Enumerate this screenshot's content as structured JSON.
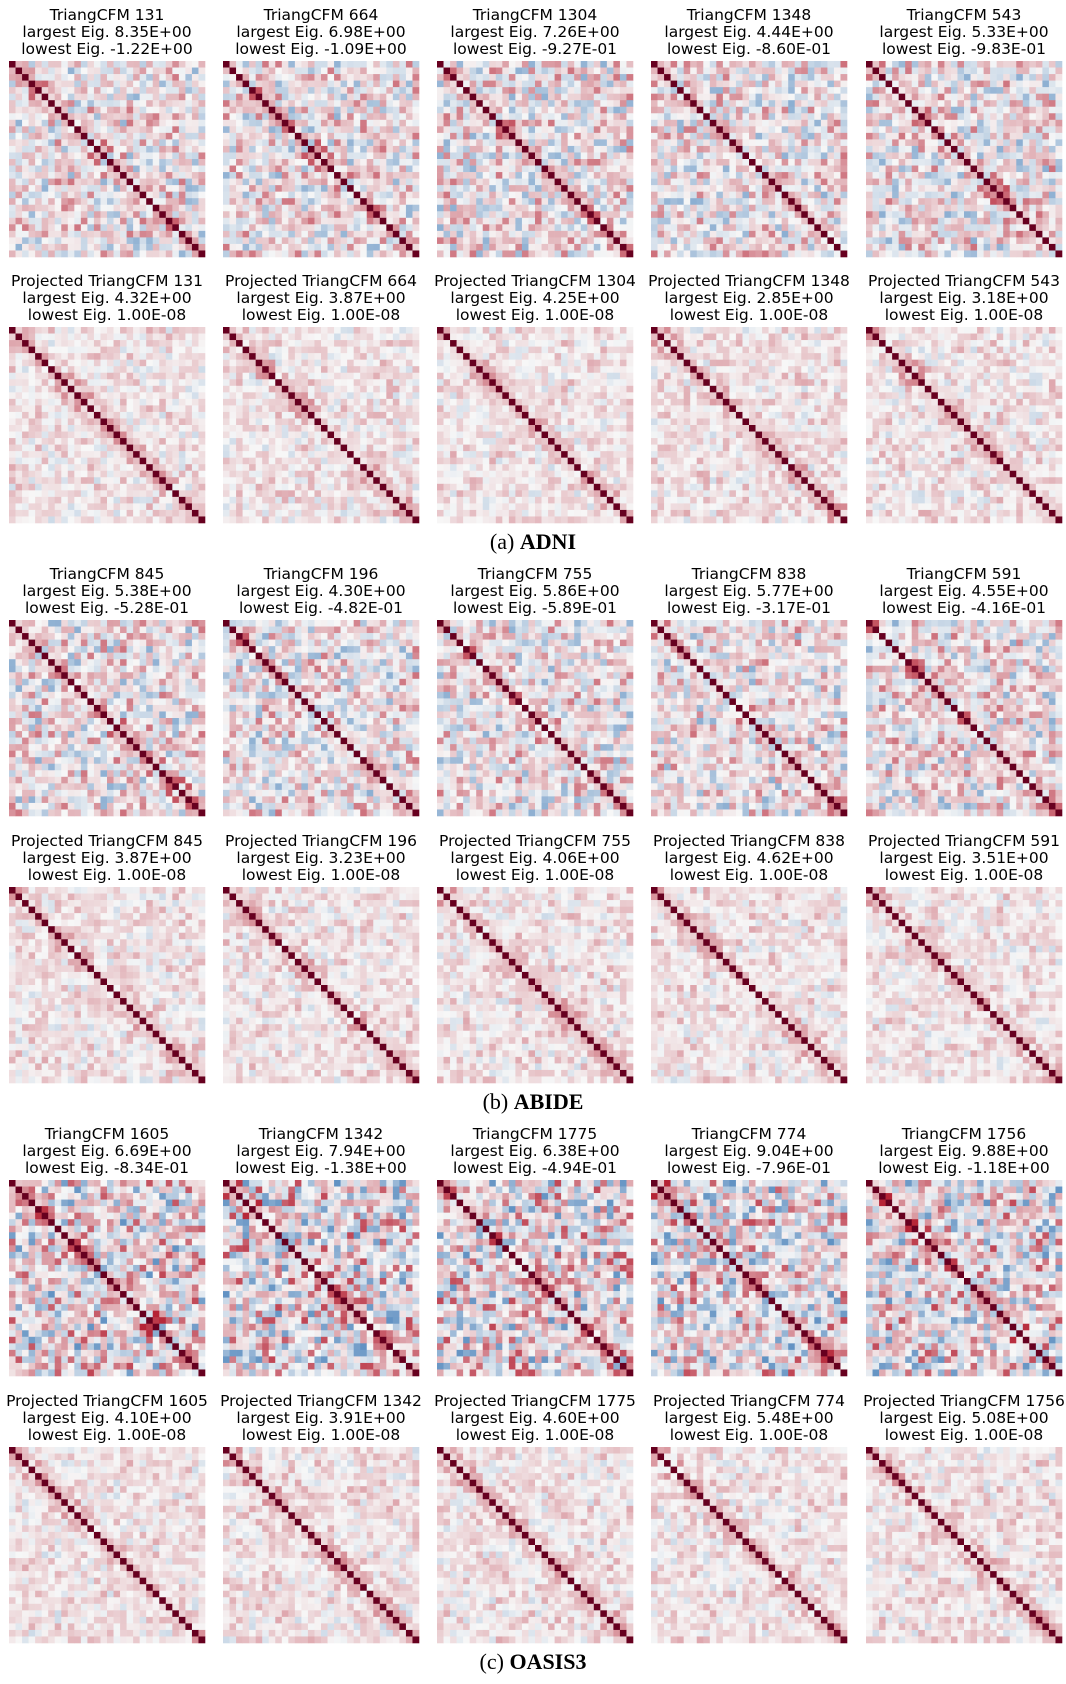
{
  "sections": [
    {
      "caption": {
        "label": "(a)",
        "name": "ADNI"
      },
      "rows": [
        [
          {
            "title": "TriangCFM 131",
            "largest": "largest Eig. 8.35E+00",
            "lowest": "lowest Eig. -1.22E+00"
          },
          {
            "title": "TriangCFM 664",
            "largest": "largest Eig. 6.98E+00",
            "lowest": "lowest Eig. -1.09E+00"
          },
          {
            "title": "TriangCFM 1304",
            "largest": "largest Eig. 7.26E+00",
            "lowest": "lowest Eig. -9.27E-01"
          },
          {
            "title": "TriangCFM 1348",
            "largest": "largest Eig. 4.44E+00",
            "lowest": "lowest Eig. -8.60E-01"
          },
          {
            "title": "TriangCFM 543",
            "largest": "largest Eig. 5.33E+00",
            "lowest": "lowest Eig. -9.83E-01"
          }
        ],
        [
          {
            "title": "Projected TriangCFM 131",
            "largest": "largest Eig. 4.32E+00",
            "lowest": "lowest Eig. 1.00E-08"
          },
          {
            "title": "Projected TriangCFM 664",
            "largest": "largest Eig. 3.87E+00",
            "lowest": "lowest Eig. 1.00E-08"
          },
          {
            "title": "Projected TriangCFM 1304",
            "largest": "largest Eig. 4.25E+00",
            "lowest": "lowest Eig. 1.00E-08"
          },
          {
            "title": "Projected TriangCFM 1348",
            "largest": "largest Eig. 2.85E+00",
            "lowest": "lowest Eig. 1.00E-08"
          },
          {
            "title": "Projected TriangCFM 543",
            "largest": "largest Eig. 3.18E+00",
            "lowest": "lowest Eig. 1.00E-08"
          }
        ]
      ]
    },
    {
      "caption": {
        "label": "(b)",
        "name": "ABIDE"
      },
      "rows": [
        [
          {
            "title": "TriangCFM 845",
            "largest": "largest Eig. 5.38E+00",
            "lowest": "lowest Eig. -5.28E-01"
          },
          {
            "title": "TriangCFM 196",
            "largest": "largest Eig. 4.30E+00",
            "lowest": "lowest Eig. -4.82E-01"
          },
          {
            "title": "TriangCFM 755",
            "largest": "largest Eig. 5.86E+00",
            "lowest": "lowest Eig. -5.89E-01"
          },
          {
            "title": "TriangCFM 838",
            "largest": "largest Eig. 5.77E+00",
            "lowest": "lowest Eig. -3.17E-01"
          },
          {
            "title": "TriangCFM 591",
            "largest": "largest Eig. 4.55E+00",
            "lowest": "lowest Eig. -4.16E-01"
          }
        ],
        [
          {
            "title": "Projected TriangCFM 845",
            "largest": "largest Eig. 3.87E+00",
            "lowest": "lowest Eig. 1.00E-08"
          },
          {
            "title": "Projected TriangCFM 196",
            "largest": "largest Eig. 3.23E+00",
            "lowest": "lowest Eig. 1.00E-08"
          },
          {
            "title": "Projected TriangCFM 755",
            "largest": "largest Eig. 4.06E+00",
            "lowest": "lowest Eig. 1.00E-08"
          },
          {
            "title": "Projected TriangCFM 838",
            "largest": "largest Eig. 4.62E+00",
            "lowest": "lowest Eig. 1.00E-08"
          },
          {
            "title": "Projected TriangCFM 591",
            "largest": "largest Eig. 3.51E+00",
            "lowest": "lowest Eig. 1.00E-08"
          }
        ]
      ]
    },
    {
      "caption": {
        "label": "(c)",
        "name": "OASIS3"
      },
      "rows": [
        [
          {
            "title": "TriangCFM 1605",
            "largest": "largest Eig. 6.69E+00",
            "lowest": "lowest Eig. -8.34E-01"
          },
          {
            "title": "TriangCFM 1342",
            "largest": "largest Eig. 7.94E+00",
            "lowest": "lowest Eig. -1.38E+00"
          },
          {
            "title": "TriangCFM 1775",
            "largest": "largest Eig. 6.38E+00",
            "lowest": "lowest Eig. -4.94E-01"
          },
          {
            "title": "TriangCFM 774",
            "largest": "largest Eig. 9.04E+00",
            "lowest": "lowest Eig. -7.96E-01"
          },
          {
            "title": "TriangCFM 1756",
            "largest": "largest Eig. 9.88E+00",
            "lowest": "lowest Eig. -1.18E+00"
          }
        ],
        [
          {
            "title": "Projected TriangCFM 1605",
            "largest": "largest Eig. 4.10E+00",
            "lowest": "lowest Eig. 1.00E-08"
          },
          {
            "title": "Projected TriangCFM 1342",
            "largest": "largest Eig. 3.91E+00",
            "lowest": "lowest Eig. 1.00E-08"
          },
          {
            "title": "Projected TriangCFM 1775",
            "largest": "largest Eig. 4.60E+00",
            "lowest": "lowest Eig. 1.00E-08"
          },
          {
            "title": "Projected TriangCFM 774",
            "largest": "largest Eig. 5.48E+00",
            "lowest": "lowest Eig. 1.00E-08"
          },
          {
            "title": "Projected TriangCFM 1756",
            "largest": "largest Eig. 5.08E+00",
            "lowest": "lowest Eig. 1.00E-08"
          }
        ]
      ]
    }
  ]
}
